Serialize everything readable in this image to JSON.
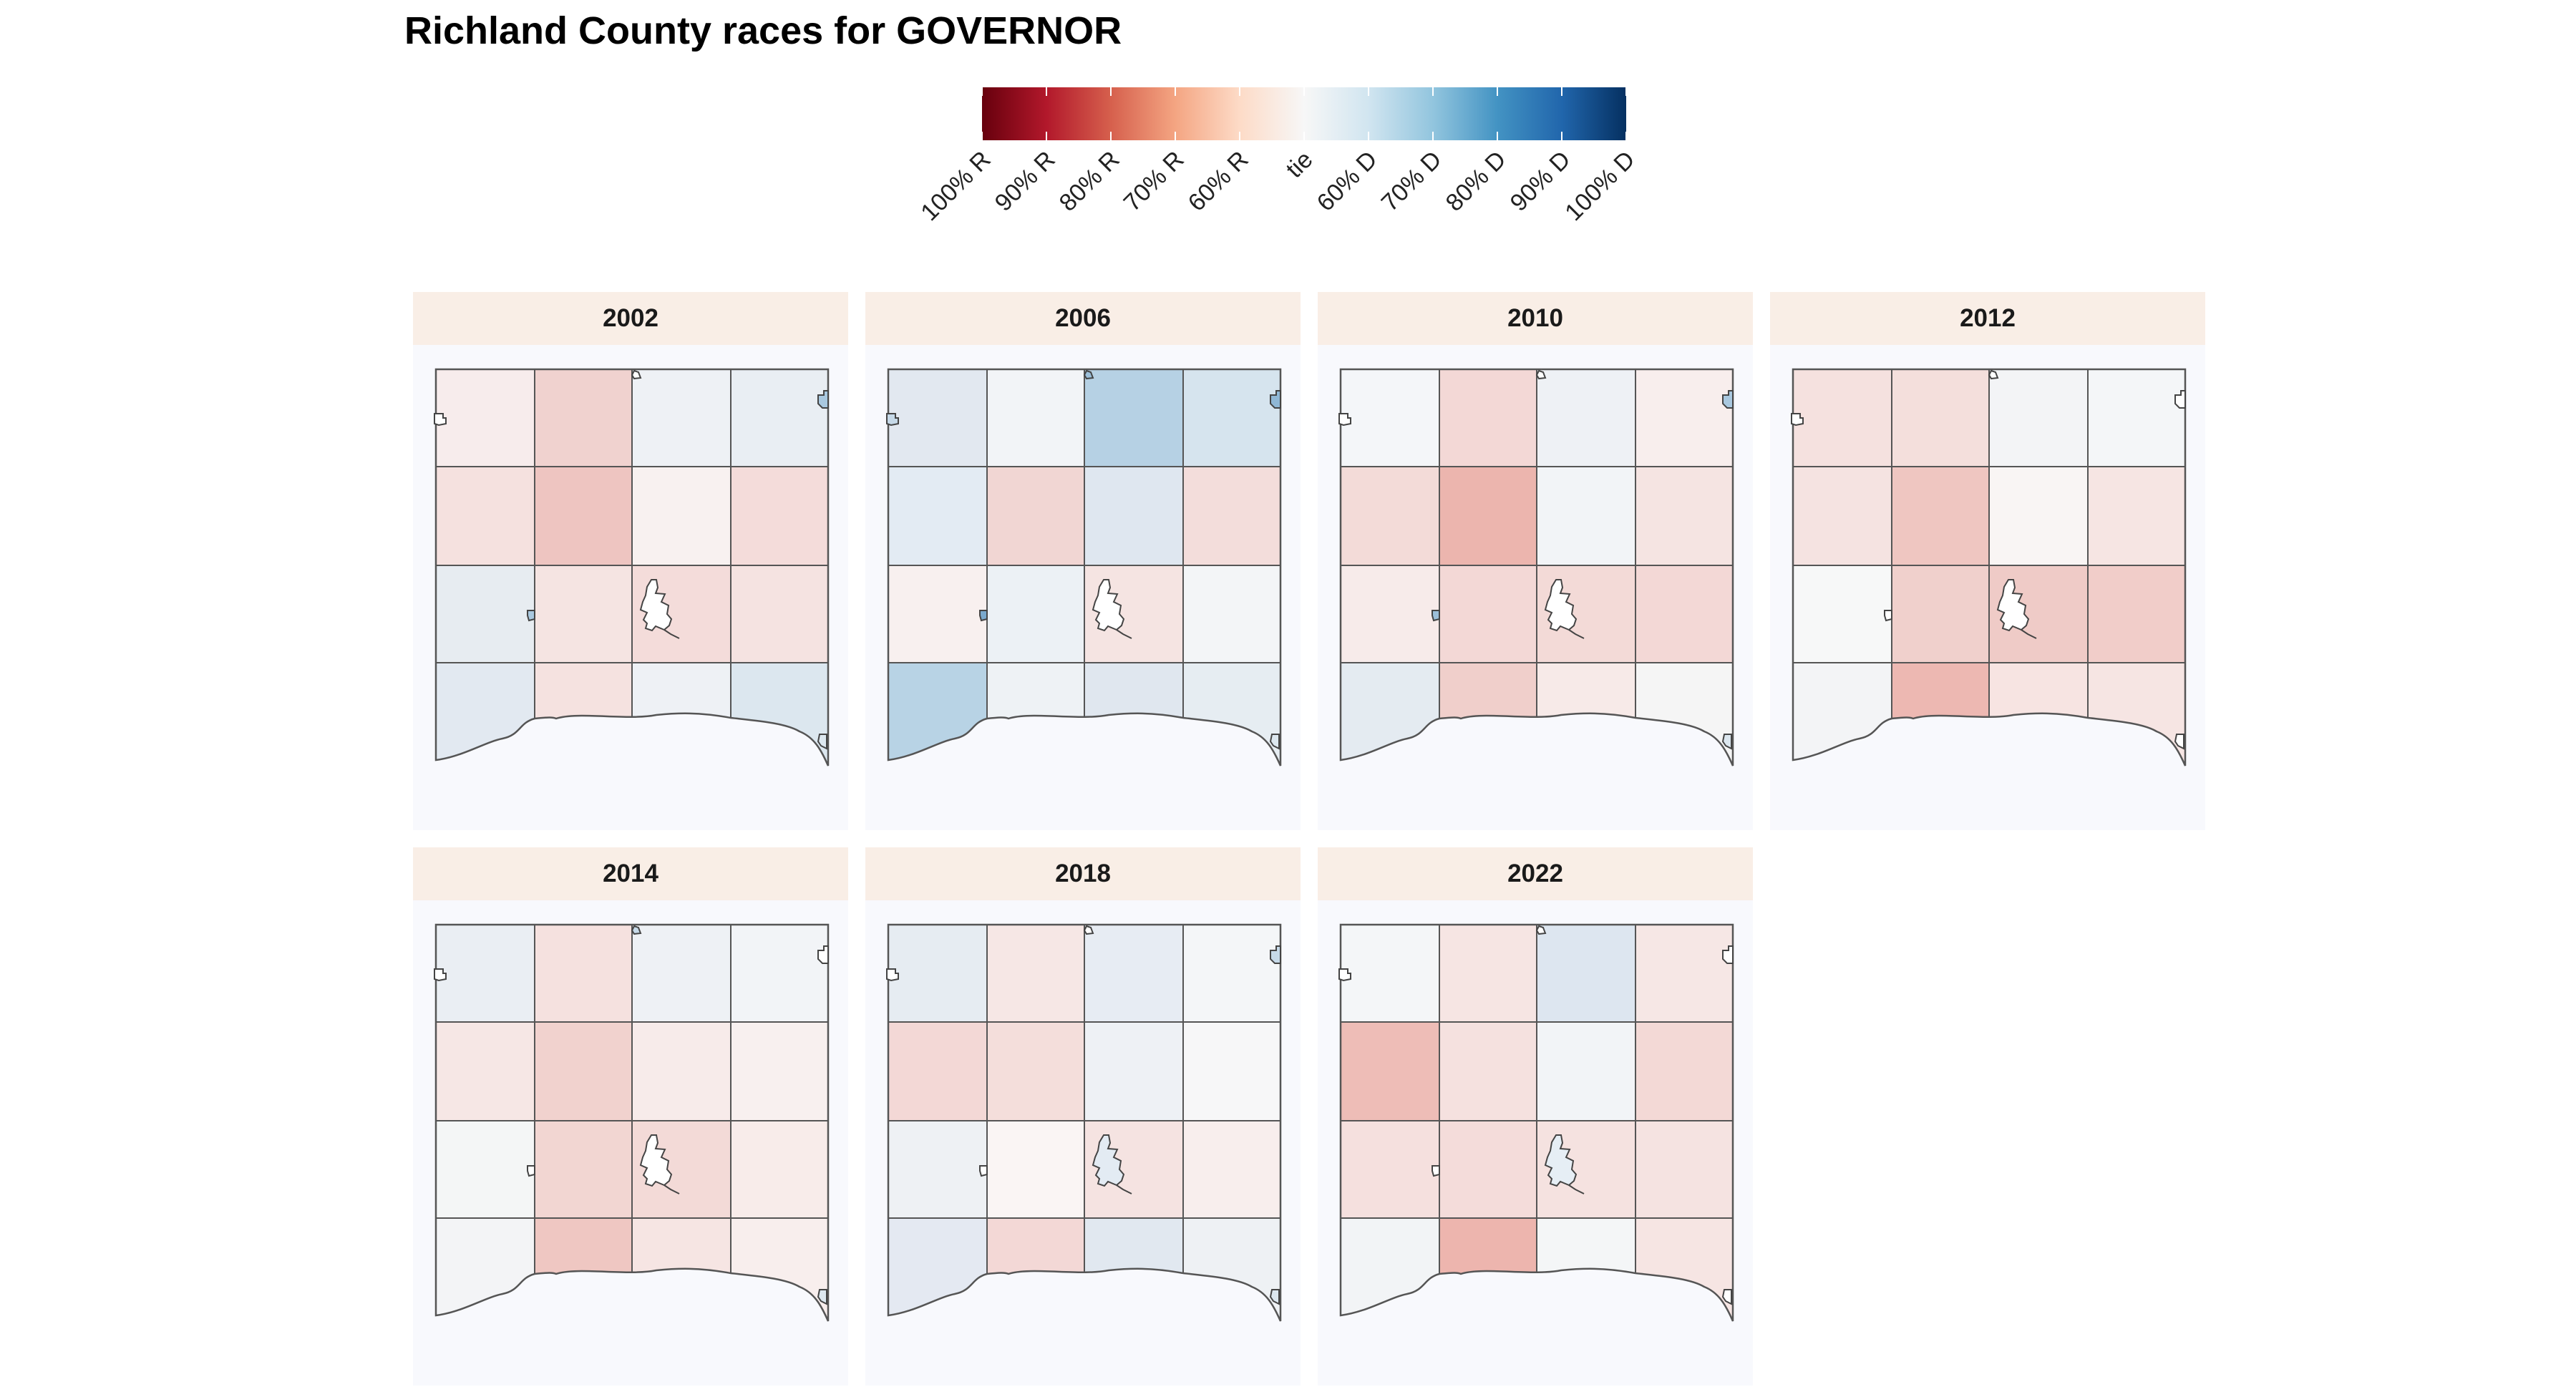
{
  "title": "Richland County races for GOVERNOR",
  "legend": {
    "stops": [
      "#67000d",
      "#b2182b",
      "#d6604d",
      "#f4a582",
      "#fddbc7",
      "#f7f7f7",
      "#d1e5f0",
      "#92c5de",
      "#4393c3",
      "#2166ac",
      "#053061"
    ],
    "labels": [
      "100% R",
      "90% R",
      "80% R",
      "70% R",
      "60% R",
      "tie",
      "60% D",
      "70% D",
      "80% D",
      "90% D",
      "100% D"
    ]
  },
  "panels": [
    {
      "year": "2002",
      "grid": [
        [
          "#f7ecec",
          "#f0d2cf",
          "#eef1f5",
          "#e9eef3"
        ],
        [
          "#f5e1df",
          "#eec5c1",
          "#f8f1f0",
          "#f4dcda"
        ],
        [
          "#e7ecf1",
          "#f5e4e2",
          "#f4dcda",
          "#f5e3e1"
        ],
        [
          "#e2e9f1",
          "#f5e2e0",
          "#eef1f5",
          "#dce7ef"
        ]
      ],
      "towns": {
        "nw": "#ffffff",
        "n": "#ffffff",
        "ne": "#a9c8df",
        "mid": "#a9c8df",
        "city": "#ffffff",
        "se": "#dce7ef"
      }
    },
    {
      "year": "2006",
      "grid": [
        [
          "#e2e8f0",
          "#f2f4f7",
          "#b6d1e4",
          "#d6e4ee"
        ],
        [
          "#e3ebf3",
          "#f1d6d3",
          "#dfe7f0",
          "#f3dddb"
        ],
        [
          "#f8f0ef",
          "#ecf1f5",
          "#f5e4e2",
          "#f3f5f7"
        ],
        [
          "#b8d3e5",
          "#eef2f5",
          "#e0e7ef",
          "#e6edf2"
        ]
      ],
      "towns": {
        "nw": "#c6d9e8",
        "n": "#9cbfd9",
        "ne": "#8fb7d5",
        "mid": "#7aa9cd",
        "city": "#ffffff",
        "se": "#dce7ef"
      }
    },
    {
      "year": "2010",
      "grid": [
        [
          "#f4f6f9",
          "#f3d8d6",
          "#eef1f5",
          "#f8eeed"
        ],
        [
          "#f3dbd8",
          "#ecb5ae",
          "#f2f4f7",
          "#f5e4e2"
        ],
        [
          "#f7ebea",
          "#f3d8d6",
          "#f3dad7",
          "#f3d8d6"
        ],
        [
          "#e4ebf1",
          "#f0cfcb",
          "#f7eae8",
          "#f5f5f5"
        ]
      ],
      "towns": {
        "nw": "#ffffff",
        "n": "#ffffff",
        "ne": "#a9c8df",
        "mid": "#9cbfd9",
        "city": "#ffffff",
        "se": "#dce7ef"
      }
    },
    {
      "year": "2012",
      "grid": [
        [
          "#f5e1df",
          "#f4dfdc",
          "#f3f4f6",
          "#f4f6f8"
        ],
        [
          "#f5e3e1",
          "#efc6c1",
          "#f9f5f4",
          "#f6e5e3"
        ],
        [
          "#f7f8f8",
          "#f0d0cc",
          "#efcbc7",
          "#f1cdc9"
        ],
        [
          "#f3f4f6",
          "#edb8b2",
          "#f7e4e2",
          "#f6e5e3"
        ]
      ],
      "towns": {
        "nw": "#ffffff",
        "n": "#ffffff",
        "ne": "#ffffff",
        "mid": "#ffffff",
        "city": "#ffffff",
        "se": "#ffffff"
      }
    },
    {
      "year": "2014",
      "grid": [
        [
          "#eaeef3",
          "#f5e1df",
          "#eef1f5",
          "#f2f4f7"
        ],
        [
          "#f6e7e5",
          "#f1d2ce",
          "#f7ebea",
          "#f8f0ef"
        ],
        [
          "#f4f6f6",
          "#f2d6d2",
          "#f3dad7",
          "#f8ecea"
        ],
        [
          "#f3f4f6",
          "#efc7c2",
          "#f6e5e3",
          "#f8eeed"
        ]
      ],
      "towns": {
        "nw": "#ffffff",
        "n": "#c6d9e8",
        "ne": "#ffffff",
        "mid": "#ffffff",
        "city": "#ffffff",
        "se": "#dce7ef"
      }
    },
    {
      "year": "2018",
      "grid": [
        [
          "#e6ecf2",
          "#f6e7e5",
          "#e7ecf3",
          "#f4f6f8"
        ],
        [
          "#f3d8d6",
          "#f4dedb",
          "#eef1f5",
          "#f7f7f8"
        ],
        [
          "#eef1f4",
          "#faf5f4",
          "#f5e3e1",
          "#f8eeed"
        ],
        [
          "#e4e9f2",
          "#f3d8d6",
          "#e1e8f0",
          "#eef1f4"
        ]
      ],
      "towns": {
        "nw": "#ffffff",
        "n": "#ffffff",
        "ne": "#c6d9e8",
        "mid": "#ffffff",
        "city": "#e3ebf3",
        "se": "#dce7ef"
      }
    },
    {
      "year": "2022",
      "grid": [
        [
          "#f4f6f8",
          "#f6e5e3",
          "#dde6f0",
          "#f6e7e5"
        ],
        [
          "#eebdb7",
          "#f5e1df",
          "#f2f4f7",
          "#f3d9d6"
        ],
        [
          "#f5e0de",
          "#f4dcda",
          "#f5e2e0",
          "#f5e3e1"
        ],
        [
          "#f2f4f6",
          "#edb5ae",
          "#f4f6f7",
          "#f6e5e3"
        ]
      ],
      "towns": {
        "nw": "#ffffff",
        "n": "#ffffff",
        "ne": "#ffffff",
        "mid": "#ffffff",
        "city": "#e6eef5",
        "se": "#ffffff"
      }
    }
  ]
}
